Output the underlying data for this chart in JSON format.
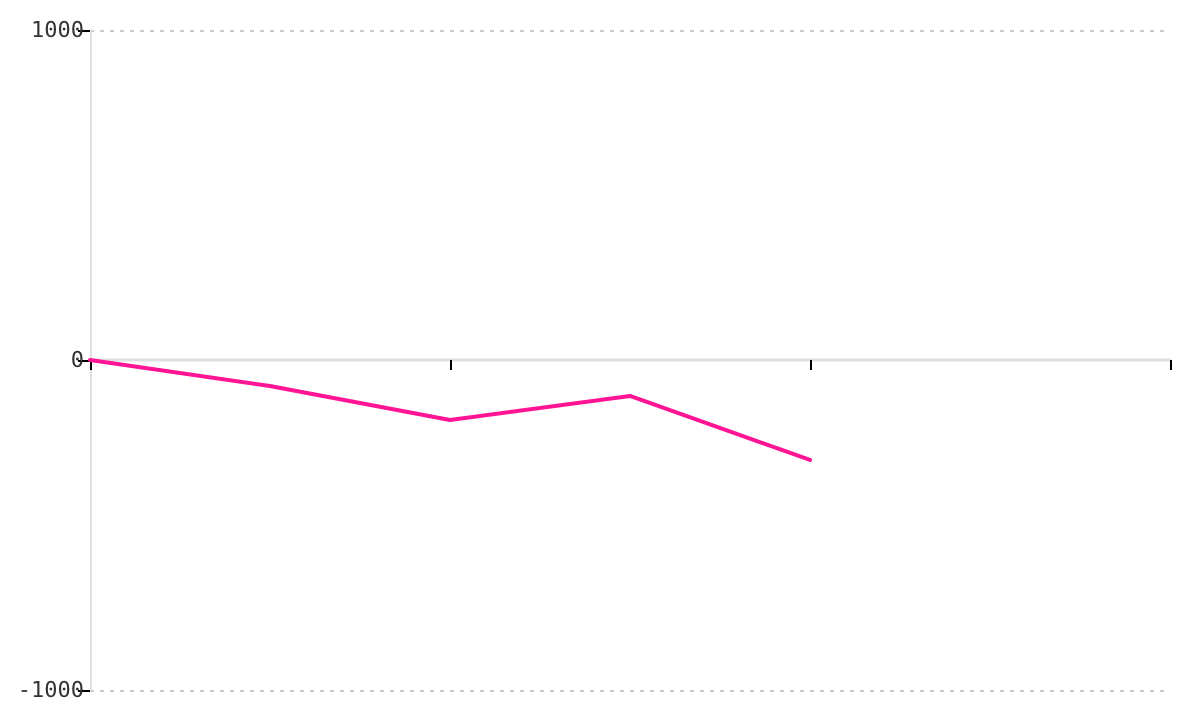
{
  "chart_data": {
    "type": "line",
    "categories": [
      null,
      null,
      null,
      null,
      null,
      null,
      null
    ],
    "series": [
      {
        "color": "#ff1493",
        "values": [
          0,
          -79,
          -182,
          -109,
          -303,
          null,
          null
        ]
      }
    ],
    "ylim": [
      -1000,
      1000
    ],
    "yticks": [
      -1000,
      0,
      1000
    ],
    "tick_labels": "y",
    "marker": "none",
    "line_style": "solid"
  }
}
